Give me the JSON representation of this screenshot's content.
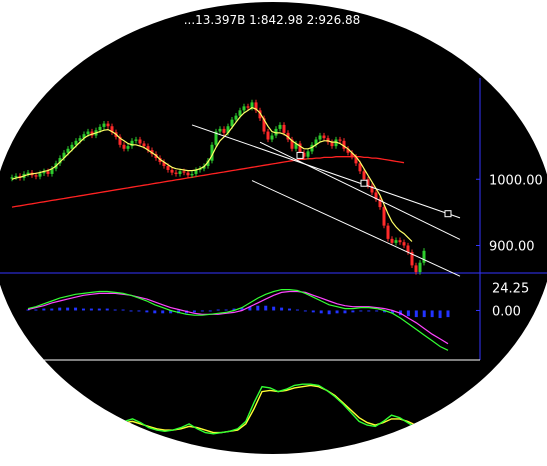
{
  "header": {
    "text": "...13.397B 1:842.98 2:926.88"
  },
  "chart_data": [
    {
      "type": "candlestick",
      "title": "",
      "y_ticks": [
        "1000.00",
        "900.00"
      ],
      "y_tick_values": [
        1000,
        900
      ],
      "ylim": [
        860,
        1180
      ],
      "x_count": 110,
      "grid": false,
      "legend": "none",
      "colors": {
        "up": "#2ecc2e",
        "down": "#ff2a2a",
        "ma_short": "#ffff66",
        "ma_long": "#ff2222",
        "channel": "#ffffff"
      },
      "candles_close": [
        1003,
        1005,
        1002,
        1008,
        1010,
        1006,
        1004,
        1009,
        1012,
        1008,
        1016,
        1024,
        1032,
        1040,
        1046,
        1052,
        1058,
        1062,
        1068,
        1072,
        1066,
        1074,
        1079,
        1084,
        1080,
        1071,
        1064,
        1052,
        1046,
        1050,
        1058,
        1060,
        1054,
        1050,
        1044,
        1038,
        1032,
        1026,
        1020,
        1014,
        1010,
        1008,
        1012,
        1010,
        1006,
        1008,
        1014,
        1016,
        1020,
        1028,
        1052,
        1072,
        1076,
        1070,
        1080,
        1090,
        1096,
        1104,
        1110,
        1108,
        1116,
        1104,
        1092,
        1072,
        1060,
        1066,
        1076,
        1082,
        1070,
        1060,
        1046,
        1054,
        1040,
        1034,
        1042,
        1052,
        1060,
        1066,
        1062,
        1056,
        1050,
        1060,
        1058,
        1046,
        1040,
        1034,
        1024,
        1012,
        1000,
        990,
        980,
        970,
        958,
        930,
        910,
        904,
        908,
        905,
        900,
        890,
        870,
        860,
        874,
        892
      ],
      "ma_short": [
        1000,
        1002,
        1003,
        1005,
        1007,
        1008,
        1009,
        1010,
        1012,
        1013,
        1016,
        1020,
        1026,
        1032,
        1038,
        1044,
        1050,
        1056,
        1062,
        1066,
        1068,
        1070,
        1072,
        1074,
        1075,
        1072,
        1068,
        1062,
        1058,
        1054,
        1052,
        1052,
        1050,
        1048,
        1044,
        1040,
        1036,
        1030,
        1026,
        1022,
        1018,
        1016,
        1015,
        1014,
        1013,
        1013,
        1014,
        1016,
        1019,
        1026,
        1036,
        1048,
        1058,
        1064,
        1070,
        1078,
        1086,
        1094,
        1100,
        1104,
        1108,
        1106,
        1100,
        1090,
        1080,
        1072,
        1070,
        1070,
        1068,
        1064,
        1058,
        1054,
        1050,
        1046,
        1046,
        1048,
        1052,
        1056,
        1058,
        1058,
        1056,
        1056,
        1054,
        1050,
        1046,
        1040,
        1034,
        1026,
        1016,
        1006,
        996,
        986,
        976,
        962,
        948,
        936,
        928,
        922,
        918,
        912,
        906
      ],
      "ma_long": [
        958,
        959,
        960,
        961,
        962,
        963,
        964,
        965,
        966,
        967,
        968,
        969,
        970,
        971,
        972,
        973,
        974,
        975,
        976,
        977,
        978,
        979,
        980,
        981,
        982,
        983,
        984,
        985,
        986,
        987,
        988,
        989,
        990,
        991,
        992,
        993,
        994,
        995,
        996,
        997,
        998,
        999,
        1000,
        1001,
        1002,
        1003,
        1004,
        1005,
        1006,
        1007,
        1008,
        1009,
        1010,
        1011,
        1012,
        1013,
        1014,
        1015,
        1016,
        1017,
        1018,
        1019,
        1020,
        1021,
        1022,
        1023,
        1024,
        1025,
        1026,
        1027,
        1028,
        1029,
        1030,
        1030,
        1031,
        1031,
        1032,
        1032,
        1033,
        1033,
        1033,
        1034,
        1034,
        1034,
        1034,
        1034,
        1034,
        1034,
        1033,
        1033,
        1032,
        1032,
        1031,
        1030,
        1029,
        1028,
        1027,
        1026,
        1025
      ],
      "channel_lines": [
        {
          "from_index": 45,
          "from_value": 1082,
          "to_index": 109,
          "to_value": 948
        },
        {
          "from_index": 62,
          "from_value": 1056,
          "to_index": 109,
          "to_value": 918
        },
        {
          "from_index": 60,
          "from_value": 998,
          "to_index": 109,
          "to_value": 862
        }
      ],
      "channel_markers": [
        {
          "index": 72,
          "value": 1036
        },
        {
          "index": 88,
          "value": 994
        },
        {
          "index": 109,
          "value": 948
        }
      ]
    },
    {
      "type": "macd",
      "title": "",
      "y_ticks": [
        "24.25",
        "0.00"
      ],
      "y_tick_values": [
        24.25,
        0
      ],
      "ylim": [
        -48,
        30
      ],
      "dif": [
        2,
        4,
        7,
        10,
        13,
        15,
        17,
        18,
        19,
        20,
        20,
        19,
        18,
        16,
        13,
        10,
        6,
        3,
        0,
        -2,
        -4,
        -5,
        -5,
        -4,
        -3,
        -2,
        0,
        3,
        8,
        13,
        17,
        20,
        22,
        22,
        21,
        18,
        14,
        10,
        6,
        4,
        2,
        2,
        3,
        3,
        2,
        0,
        -3,
        -8,
        -14,
        -20,
        -26,
        -32,
        -38,
        -42
      ],
      "dea": [
        1,
        3,
        5,
        8,
        10,
        12,
        14,
        16,
        17,
        18,
        18,
        18,
        17,
        16,
        14,
        12,
        9,
        6,
        3,
        1,
        -1,
        -3,
        -4,
        -4,
        -4,
        -3,
        -2,
        0,
        4,
        8,
        12,
        16,
        19,
        20,
        20,
        19,
        16,
        13,
        10,
        7,
        5,
        4,
        4,
        4,
        3,
        2,
        0,
        -3,
        -8,
        -13,
        -19,
        -25,
        -30,
        -35
      ],
      "hist": [
        1,
        1,
        2,
        2,
        3,
        3,
        3,
        2,
        2,
        2,
        2,
        1,
        1,
        0,
        -1,
        -2,
        -3,
        -3,
        -3,
        -3,
        -3,
        -2,
        -1,
        0,
        1,
        1,
        2,
        3,
        4,
        5,
        5,
        4,
        3,
        2,
        1,
        -1,
        -2,
        -3,
        -4,
        -3,
        -3,
        -2,
        -1,
        -1,
        -1,
        -2,
        -3,
        -5,
        -6,
        -7,
        -7,
        -7,
        -8,
        -7
      ]
    },
    {
      "type": "kdj",
      "title": "",
      "k": [
        8,
        10,
        14,
        22,
        30,
        34,
        28,
        20,
        16,
        14,
        16,
        20,
        26,
        18,
        12,
        10,
        12,
        14,
        18,
        30,
        60,
        86,
        84,
        78,
        82,
        88,
        90,
        90,
        88,
        80,
        70,
        58,
        44,
        30,
        24,
        22,
        30,
        40,
        36,
        28,
        20,
        14,
        10
      ],
      "d": [
        10,
        12,
        16,
        22,
        28,
        30,
        26,
        22,
        18,
        16,
        16,
        18,
        22,
        20,
        16,
        12,
        12,
        14,
        16,
        26,
        50,
        78,
        80,
        78,
        80,
        84,
        86,
        88,
        86,
        80,
        72,
        60,
        48,
        36,
        28,
        24,
        28,
        34,
        34,
        30,
        24,
        18,
        14
      ]
    }
  ]
}
